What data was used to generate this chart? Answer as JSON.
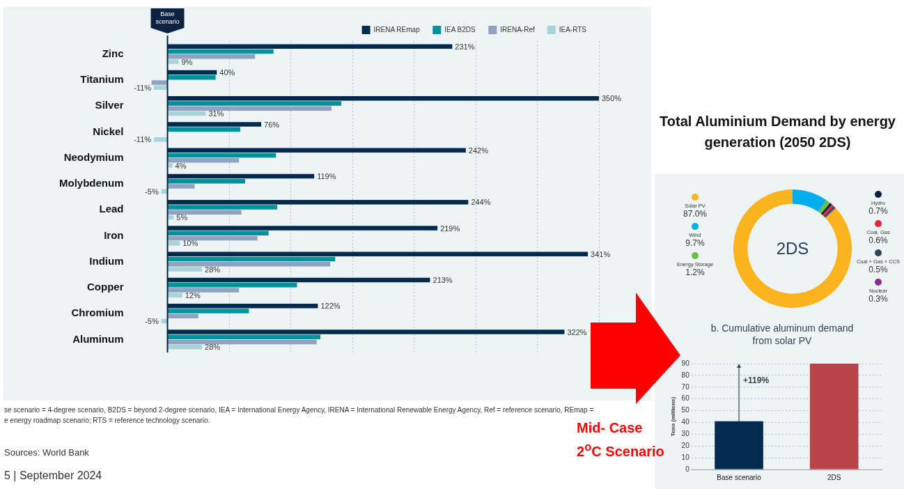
{
  "chart_data": [
    {
      "type": "bar",
      "orientation": "horizontal",
      "categories": [
        "Zinc",
        "Titanium",
        "Silver",
        "Nickel",
        "Neodymium",
        "Molybdenum",
        "Lead",
        "Iron",
        "Indium",
        "Copper",
        "Chromium",
        "Aluminum"
      ],
      "series": [
        {
          "name": "IRENA REmap",
          "color": "#002b4f",
          "values": [
            231,
            40,
            350,
            76,
            242,
            119,
            244,
            219,
            341,
            213,
            122,
            322
          ],
          "value_labels": [
            "231%",
            "40%",
            "350%",
            "76%",
            "242%",
            "119%",
            "244%",
            "219%",
            "341%",
            "213%",
            "122%",
            "322%"
          ]
        },
        {
          "name": "IEA B2DS",
          "color": "#00929a",
          "values": [
            86,
            39,
            141,
            59,
            88,
            63,
            89,
            82,
            136,
            105,
            66,
            124
          ]
        },
        {
          "name": "IRENA-Ref",
          "color": "#8fa3c0",
          "values": [
            71,
            -13,
            133,
            null,
            58,
            22,
            60,
            73,
            132,
            58,
            25,
            121
          ]
        },
        {
          "name": "IEA-RTS",
          "color": "#a8d3d8",
          "values": [
            9,
            -11,
            31,
            -11,
            4,
            -5,
            5,
            10,
            28,
            12,
            -5,
            28
          ],
          "value_labels": [
            "9%",
            "-11%",
            "31%",
            "-11%",
            "4%",
            "-5%",
            "5%",
            "10%",
            "28%",
            "12%",
            "-5%",
            "28%"
          ]
        }
      ],
      "xticks": [
        {
          "value": 0,
          "label": null
        },
        {
          "value": 50,
          "label": null
        },
        {
          "value": 100,
          "label": null
        },
        {
          "value": 150,
          "label": null
        },
        {
          "value": 200,
          "label": null
        },
        {
          "value": 250,
          "label": null
        },
        {
          "value": 300,
          "label": null
        },
        {
          "value": 350,
          "label": null
        }
      ],
      "tick_labels": "y",
      "grid": "x",
      "legend": "top right",
      "ref_lines": [
        {
          "axis": "x",
          "value": 0,
          "label": "Base scenario",
          "color": "#0b2340"
        }
      ],
      "annotations": [
        "se scenario = 4-degree scenario, B2DS = beyond 2-degree scenario, IEA = International Energy Agency, IRENA = International Renewable Energy Agency, Ref = reference scenario, REmap =",
        "e energy roadmap scenario; RTS = reference technology scenario.",
        "Sources: World Bank",
        "5 | September 2024"
      ]
    },
    {
      "type": "donut",
      "title": "Total Aluminium Demand by energy generation (2050 2DS)",
      "categories": [
        "Solar PV",
        "Wind",
        "Energy Storage",
        "Hydro",
        "Coal, Gas",
        "Coal + Gas + CCS",
        "Nuclear"
      ],
      "values": [
        87,
        9.7,
        1.2,
        0.7,
        0.6,
        0.5,
        0.3
      ],
      "colors": [
        "#fbb41d",
        "#00aeef",
        "#6cbf45",
        "#0b2340",
        "#e8262f",
        "#2d4656",
        "#8b2a8f"
      ],
      "value_labels": [
        "87.0%",
        "9.7%",
        "1.2%",
        "0.7%",
        "0.6%",
        "0.5%",
        "0.3%"
      ],
      "legend": "left",
      "annotations": [
        "2DS"
      ]
    },
    {
      "type": "bar",
      "title": "b. Cumulative aluminum demand from solar PV",
      "ylabel": "Tons (millions)",
      "categories": [
        "Base scenario",
        "2DS"
      ],
      "values": [
        41,
        90
      ],
      "colors": [
        "#002b4f",
        "#b94346"
      ],
      "ylim": [
        0,
        90
      ],
      "yticks": [
        0,
        10,
        20,
        30,
        40,
        50,
        60,
        70,
        80,
        90
      ],
      "grid": "y",
      "annotations": [
        "+119%",
        "Mid- Case 2$^{o}$C Scenario"
      ]
    }
  ]
}
